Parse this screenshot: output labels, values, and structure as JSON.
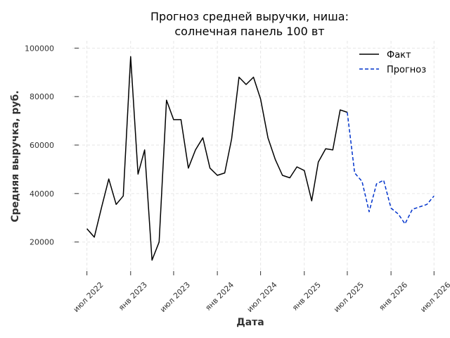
{
  "chart_data": {
    "type": "line",
    "title_line1": "Прогноз средней выручки, ниша:",
    "title_line2": "солнечная панель 100 вт",
    "xlabel": "Дата",
    "ylabel": "Средняя выручка, руб.",
    "ylim": [
      8000,
      103000
    ],
    "xlim": [
      "2022-05-01",
      "2026-07-15"
    ],
    "grid": true,
    "legend_position": "top-right",
    "y_ticks": [
      {
        "value": 20000,
        "label": "20000"
      },
      {
        "value": 40000,
        "label": "40000"
      },
      {
        "value": 60000,
        "label": "60000"
      },
      {
        "value": 80000,
        "label": "80000"
      },
      {
        "value": 100000,
        "label": "100000"
      }
    ],
    "x_ticks": [
      {
        "date": "2022-07-01",
        "label": "июл 2022"
      },
      {
        "date": "2023-01-01",
        "label": "янв 2023"
      },
      {
        "date": "2023-07-01",
        "label": "июл 2023"
      },
      {
        "date": "2024-01-01",
        "label": "янв 2024"
      },
      {
        "date": "2024-07-01",
        "label": "июл 2024"
      },
      {
        "date": "2025-01-01",
        "label": "янв 2025"
      },
      {
        "date": "2025-07-01",
        "label": "июл 2025"
      },
      {
        "date": "2026-01-01",
        "label": "янв 2026"
      },
      {
        "date": "2026-07-01",
        "label": "июл 2026"
      }
    ],
    "series": [
      {
        "name": "Факт",
        "color": "#000000",
        "dashed": false,
        "points": [
          {
            "x": "2022-07-01",
            "y": 25500
          },
          {
            "x": "2022-08-01",
            "y": 22000
          },
          {
            "x": "2022-09-01",
            "y": 34500
          },
          {
            "x": "2022-10-01",
            "y": 46000
          },
          {
            "x": "2022-11-01",
            "y": 35500
          },
          {
            "x": "2022-12-01",
            "y": 39000
          },
          {
            "x": "2023-01-01",
            "y": 96500
          },
          {
            "x": "2023-02-01",
            "y": 48000
          },
          {
            "x": "2023-03-01",
            "y": 58000
          },
          {
            "x": "2023-04-01",
            "y": 12500
          },
          {
            "x": "2023-05-01",
            "y": 20000
          },
          {
            "x": "2023-06-01",
            "y": 78500
          },
          {
            "x": "2023-07-01",
            "y": 70500
          },
          {
            "x": "2023-08-01",
            "y": 70500
          },
          {
            "x": "2023-09-01",
            "y": 50500
          },
          {
            "x": "2023-10-01",
            "y": 58000
          },
          {
            "x": "2023-11-01",
            "y": 63000
          },
          {
            "x": "2023-12-01",
            "y": 50500
          },
          {
            "x": "2024-01-01",
            "y": 47500
          },
          {
            "x": "2024-02-01",
            "y": 48500
          },
          {
            "x": "2024-03-01",
            "y": 62500
          },
          {
            "x": "2024-04-01",
            "y": 88000
          },
          {
            "x": "2024-05-01",
            "y": 85000
          },
          {
            "x": "2024-06-01",
            "y": 88000
          },
          {
            "x": "2024-07-01",
            "y": 79000
          },
          {
            "x": "2024-08-01",
            "y": 63000
          },
          {
            "x": "2024-09-01",
            "y": 54000
          },
          {
            "x": "2024-10-01",
            "y": 47500
          },
          {
            "x": "2024-11-01",
            "y": 46500
          },
          {
            "x": "2024-12-01",
            "y": 51000
          },
          {
            "x": "2025-01-01",
            "y": 49500
          },
          {
            "x": "2025-02-01",
            "y": 37000
          },
          {
            "x": "2025-03-01",
            "y": 53000
          },
          {
            "x": "2025-04-01",
            "y": 58500
          },
          {
            "x": "2025-05-01",
            "y": 58000
          },
          {
            "x": "2025-06-01",
            "y": 74500
          },
          {
            "x": "2025-07-01",
            "y": 73500
          }
        ]
      },
      {
        "name": "Прогноз",
        "color": "#0033cc",
        "dashed": true,
        "points": [
          {
            "x": "2025-07-01",
            "y": 73500
          },
          {
            "x": "2025-08-01",
            "y": 48500
          },
          {
            "x": "2025-09-01",
            "y": 45000
          },
          {
            "x": "2025-10-01",
            "y": 32500
          },
          {
            "x": "2025-11-01",
            "y": 44000
          },
          {
            "x": "2025-12-01",
            "y": 45500
          },
          {
            "x": "2026-01-01",
            "y": 34000
          },
          {
            "x": "2026-02-01",
            "y": 31500
          },
          {
            "x": "2026-03-01",
            "y": 27500
          },
          {
            "x": "2026-04-01",
            "y": 33500
          },
          {
            "x": "2026-05-01",
            "y": 34500
          },
          {
            "x": "2026-06-01",
            "y": 35500
          },
          {
            "x": "2026-07-01",
            "y": 39000
          }
        ]
      }
    ]
  }
}
